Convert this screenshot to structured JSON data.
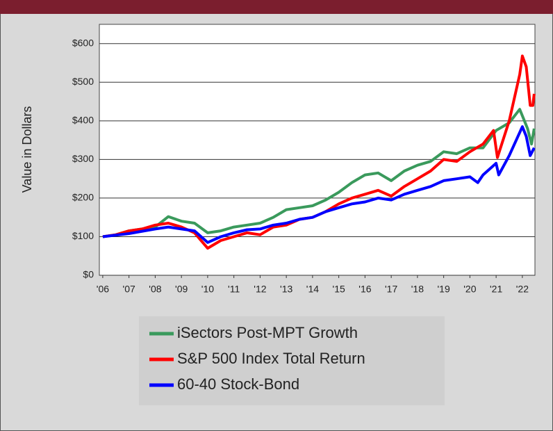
{
  "chart_data": {
    "type": "line",
    "y_label": "Value in Dollars",
    "xlim": [
      2005.87,
      2022.48
    ],
    "xticks": [
      {
        "value": 2006,
        "label": "'06"
      },
      {
        "value": 2007,
        "label": "'07"
      },
      {
        "value": 2008,
        "label": "'08"
      },
      {
        "value": 2009,
        "label": "'09"
      },
      {
        "value": 2010,
        "label": "'10"
      },
      {
        "value": 2011,
        "label": "'11"
      },
      {
        "value": 2012,
        "label": "'12"
      },
      {
        "value": 2013,
        "label": "'13"
      },
      {
        "value": 2014,
        "label": "'14"
      },
      {
        "value": 2015,
        "label": "'15"
      },
      {
        "value": 2016,
        "label": "'16"
      },
      {
        "value": 2017,
        "label": "'17"
      },
      {
        "value": 2018,
        "label": "'18"
      },
      {
        "value": 2019,
        "label": "'19"
      },
      {
        "value": 2020,
        "label": "'20"
      },
      {
        "value": 2021,
        "label": "'21"
      },
      {
        "value": 2022,
        "label": "'22"
      }
    ],
    "ylim": [
      0,
      650
    ],
    "yticks": [
      {
        "value": 0,
        "label": "$0"
      },
      {
        "value": 100,
        "label": "$100"
      },
      {
        "value": 200,
        "label": "$200"
      },
      {
        "value": 300,
        "label": "$300"
      },
      {
        "value": 400,
        "label": "$400"
      },
      {
        "value": 500,
        "label": "$500"
      },
      {
        "value": 600,
        "label": "$600"
      }
    ],
    "grid": true,
    "series": [
      {
        "name": "iSectors Post-MPT Growth",
        "color": "#3a9a5c",
        "x": [
          2006,
          2006.5,
          2007,
          2007.5,
          2008,
          2008.5,
          2009,
          2009.5,
          2010,
          2010.5,
          2011,
          2011.5,
          2012,
          2012.5,
          2013,
          2013.5,
          2014,
          2014.5,
          2015,
          2015.5,
          2016,
          2016.5,
          2017,
          2017.5,
          2018,
          2018.5,
          2019,
          2019.5,
          2020,
          2020.5,
          2021,
          2021.5,
          2021.9,
          2022.2,
          2022.35,
          2022.45
        ],
        "values": [
          100,
          105,
          115,
          120,
          125,
          152,
          140,
          135,
          110,
          115,
          125,
          130,
          135,
          150,
          170,
          175,
          180,
          195,
          215,
          240,
          260,
          265,
          245,
          270,
          285,
          295,
          320,
          315,
          330,
          330,
          375,
          395,
          430,
          380,
          340,
          380
        ]
      },
      {
        "name": "S&P 500 Index Total Return",
        "color": "#ff0000",
        "x": [
          2006,
          2006.5,
          2007,
          2007.5,
          2008,
          2008.5,
          2009,
          2009.5,
          2010,
          2010.5,
          2011,
          2011.5,
          2012,
          2012.5,
          2013,
          2013.5,
          2014,
          2014.5,
          2015,
          2015.5,
          2016,
          2016.5,
          2017,
          2017.5,
          2018,
          2018.5,
          2019,
          2019.5,
          2020,
          2020.5,
          2020.9,
          2021.05,
          2021.5,
          2021.9,
          2022,
          2022.15,
          2022.3,
          2022.4,
          2022.45
        ],
        "values": [
          100,
          105,
          115,
          120,
          130,
          135,
          125,
          110,
          70,
          90,
          100,
          110,
          105,
          125,
          130,
          145,
          150,
          165,
          185,
          200,
          210,
          220,
          205,
          230,
          250,
          270,
          300,
          295,
          320,
          340,
          375,
          305,
          400,
          520,
          568,
          540,
          440,
          440,
          470
        ]
      },
      {
        "name": "60-40 Stock-Bond",
        "color": "#0000ff",
        "x": [
          2006,
          2007,
          2008,
          2008.5,
          2009,
          2009.5,
          2010,
          2010.5,
          2011,
          2011.5,
          2012,
          2012.5,
          2013,
          2013.5,
          2014,
          2014.5,
          2015,
          2015.5,
          2016,
          2016.5,
          2017,
          2017.5,
          2018,
          2018.5,
          2019,
          2019.5,
          2020,
          2020.3,
          2020.5,
          2021,
          2021.1,
          2021.5,
          2022,
          2022.15,
          2022.3,
          2022.45
        ],
        "values": [
          100,
          108,
          120,
          125,
          120,
          115,
          85,
          100,
          110,
          118,
          120,
          130,
          135,
          145,
          150,
          165,
          175,
          185,
          190,
          200,
          195,
          210,
          220,
          230,
          245,
          250,
          255,
          240,
          260,
          290,
          260,
          310,
          385,
          360,
          310,
          330
        ]
      }
    ]
  }
}
